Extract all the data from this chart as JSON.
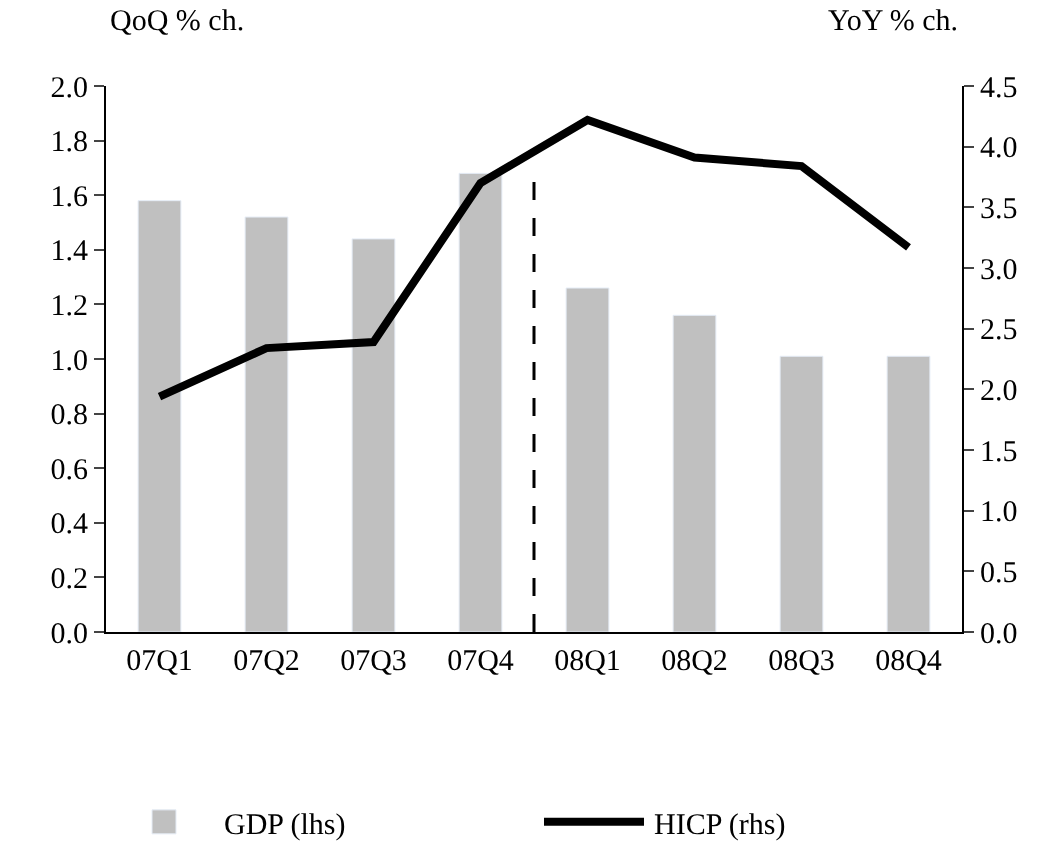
{
  "chart_data": {
    "type": "bar",
    "ylabel": "QoQ % ch.",
    "y2label": "YoY % ch.",
    "categories": [
      "07Q1",
      "07Q2",
      "07Q3",
      "07Q4",
      "08Q1",
      "08Q2",
      "08Q3",
      "08Q4"
    ],
    "series": [
      {
        "name": "GDP (lhs)",
        "color": "#c0c0c0",
        "values": [
          1.58,
          1.52,
          1.44,
          1.68,
          1.26,
          1.16,
          1.01,
          1.01
        ]
      },
      {
        "name": "HICP (rhs)",
        "type": "line",
        "axis": "y2",
        "color": "#000000",
        "line_style": "solid",
        "values": [
          1.94,
          2.34,
          2.39,
          3.7,
          4.22,
          3.91,
          3.84,
          3.17
        ]
      }
    ],
    "ylim": [
      0,
      2.0
    ],
    "yticks": [
      {
        "value": 0,
        "label": "0.0"
      },
      0.2,
      0.4,
      0.6,
      0.8,
      {
        "value": 1,
        "label": "1.0"
      },
      1.2,
      1.4,
      1.6,
      1.8,
      {
        "value": 2,
        "label": "2.0"
      }
    ],
    "y2lim": [
      0,
      4.5
    ],
    "y2ticks": [
      {
        "value": 0,
        "label": "0.0"
      },
      0.5,
      {
        "value": 1,
        "label": "1.0"
      },
      1.5,
      {
        "value": 2,
        "label": "2.0"
      },
      2.5,
      {
        "value": 3,
        "label": "3.0"
      },
      3.5,
      {
        "value": 4,
        "label": "4.0"
      },
      4.5
    ],
    "legend": "bottom"
  }
}
